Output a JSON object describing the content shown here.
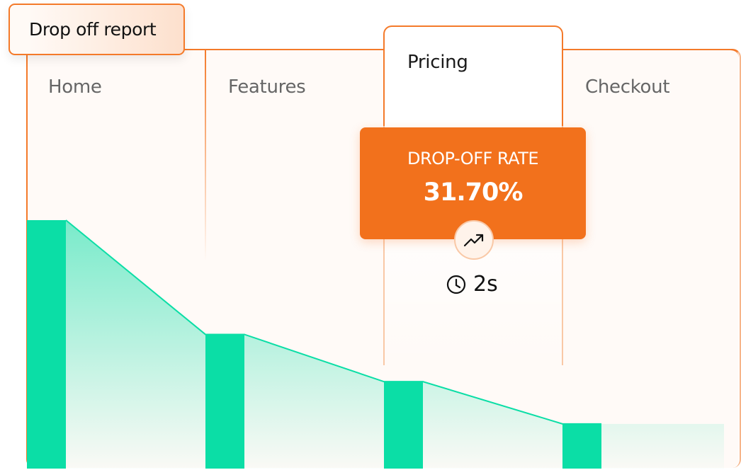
{
  "title": "Drop off report",
  "colors": {
    "accent": "#f47a2a",
    "bar": "#0bdea6",
    "rate_card": "#f2711c"
  },
  "chart_data": {
    "type": "bar",
    "categories": [
      "Home",
      "Features",
      "Pricing",
      "Checkout"
    ],
    "values": [
      100,
      54,
      35,
      18
    ],
    "active_category": "Pricing",
    "connector": "area"
  },
  "tooltip": {
    "label": "DROP-OFF RATE",
    "value": "31.70%",
    "icon": "trend-up-icon",
    "time_icon": "clock-icon",
    "time": "2s"
  }
}
